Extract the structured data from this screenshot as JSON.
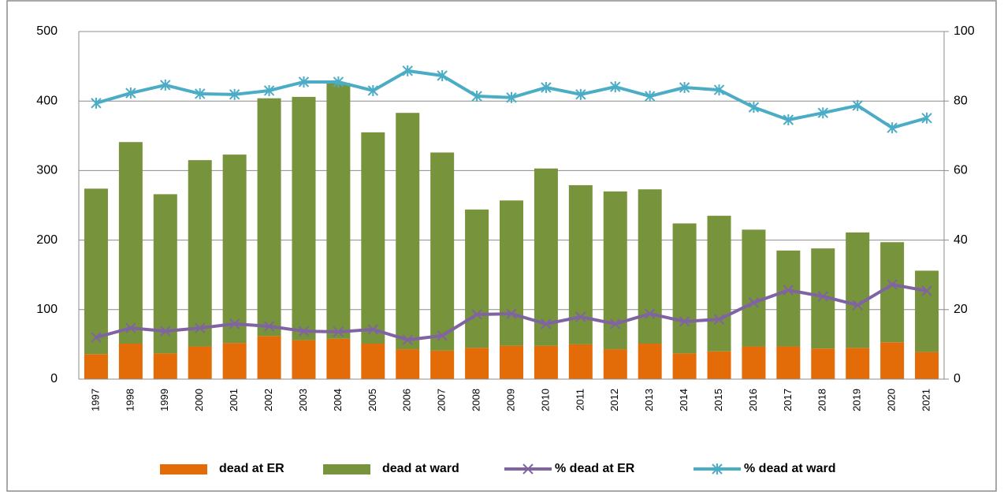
{
  "chart_data": {
    "type": "bar",
    "stacked": true,
    "categories": [
      "1997",
      "1998",
      "1999",
      "2000",
      "2001",
      "2002",
      "2003",
      "2004",
      "2005",
      "2006",
      "2007",
      "2008",
      "2009",
      "2010",
      "2011",
      "2012",
      "2013",
      "2014",
      "2015",
      "2016",
      "2017",
      "2018",
      "2019",
      "2020",
      "2021"
    ],
    "series": [
      {
        "name": "dead at ER",
        "type": "bar",
        "axis": "y",
        "color": "#e36c09",
        "values": [
          36,
          51,
          37,
          47,
          52,
          62,
          56,
          58,
          51,
          43,
          41,
          45,
          48,
          48,
          50,
          43,
          51,
          37,
          40,
          47,
          47,
          44,
          45,
          53,
          39
        ]
      },
      {
        "name": "dead at ward",
        "type": "bar",
        "axis": "y",
        "color": "#77933c",
        "values": [
          238,
          290,
          229,
          268,
          271,
          342,
          350,
          368,
          304,
          340,
          285,
          199,
          209,
          255,
          229,
          227,
          222,
          187,
          195,
          168,
          138,
          144,
          166,
          144,
          117
        ]
      },
      {
        "name": "% dead at ER",
        "type": "line",
        "axis": "y2",
        "color": "#8064a2",
        "marker": "x",
        "values": [
          12,
          14.7,
          13.8,
          14.7,
          15.9,
          15.2,
          13.8,
          13.6,
          14.3,
          11.3,
          12.5,
          18.6,
          18.8,
          15.9,
          17.9,
          15.9,
          18.8,
          16.6,
          17.2,
          22,
          25.6,
          23.8,
          21.3,
          27.2,
          25.4
        ]
      },
      {
        "name": "% dead at ward",
        "type": "line",
        "axis": "y2",
        "color": "#4bacc6",
        "marker": "asterisk",
        "values": [
          79.4,
          82.3,
          84.6,
          82.1,
          81.9,
          83,
          85.5,
          85.5,
          83,
          88.7,
          87.3,
          81.4,
          81,
          83.9,
          81.9,
          84.1,
          81.4,
          83.9,
          83.2,
          78.2,
          74.6,
          76.6,
          78.7,
          72.3,
          75.1
        ]
      }
    ],
    "ylim": [
      0,
      500
    ],
    "yticks": [
      0,
      100,
      200,
      300,
      400,
      500
    ],
    "y2lim": [
      0,
      100
    ],
    "y2ticks": [
      0,
      20,
      40,
      60,
      80,
      100
    ],
    "grid": true,
    "legend": "bottom"
  }
}
